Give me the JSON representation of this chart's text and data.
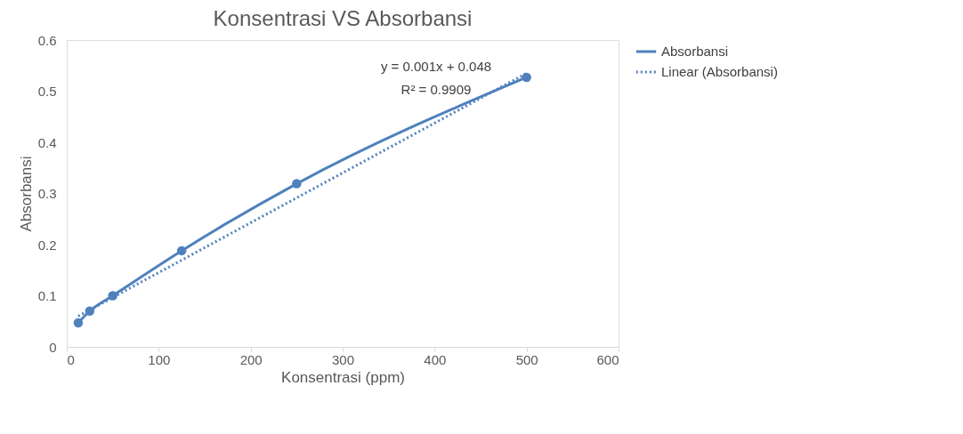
{
  "chart_data": {
    "type": "line",
    "title": "Konsentrasi VS Absorbansi",
    "xlabel": "Konsentrasi (ppm)",
    "ylabel": "Absorbansi",
    "xlim": [
      0,
      600
    ],
    "xticks": [
      0,
      100,
      200,
      300,
      400,
      500,
      600
    ],
    "ylim": [
      0,
      0.6
    ],
    "yticks": [
      0,
      0.1,
      0.2,
      0.3,
      0.4,
      0.5,
      0.6
    ],
    "grid": false,
    "legend": "right",
    "series": [
      {
        "name": "Absorbansi",
        "color": "#4f81bd",
        "x": [
          12.5,
          25,
          50,
          125,
          250,
          500
        ],
        "values": [
          0.047,
          0.07,
          0.1,
          0.188,
          0.319,
          0.527
        ],
        "marker": "circle",
        "line_style": "solid"
      },
      {
        "name": "Linear (Absorbansi)",
        "color": "#4f81bd",
        "x": [
          12.5,
          500
        ],
        "values": [
          0.06,
          0.535
        ],
        "marker": "none",
        "line_style": "dotted"
      }
    ],
    "annotations": [
      "y = 0.001x + 0.048",
      "R² = 0.9909"
    ]
  }
}
